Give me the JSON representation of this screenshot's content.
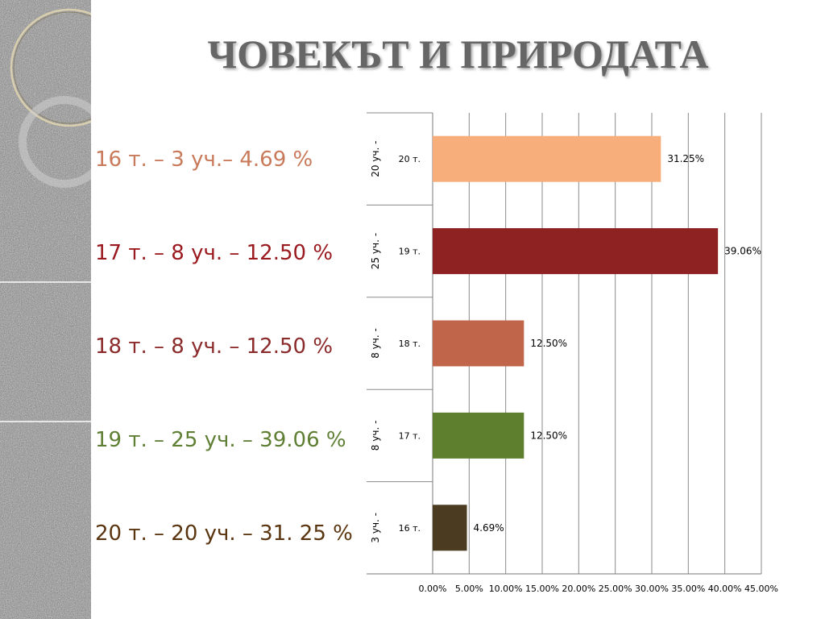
{
  "title": "ЧОВЕКЪТ И ПРИРОДАТА",
  "colors": {
    "title": "#666666",
    "sidebar": "#8f8f8f"
  },
  "stats": [
    {
      "text": "16 т. – 3 уч.– 4.69 %",
      "color": "#c87a5a"
    },
    {
      "text": "17 т. – 8 уч. – 12.50 %",
      "color": "#9a1a1f"
    },
    {
      "text": "18 т. – 8 уч. – 12.50 %",
      "color": "#8b2b2b"
    },
    {
      "text": "19 т. – 25 уч. – 39.06 %",
      "color": "#5f7f34"
    },
    {
      "text": "20 т. – 20 уч. – 31. 25 %",
      "color": "#5a3510"
    }
  ],
  "chart_data": {
    "type": "bar",
    "orientation": "horizontal",
    "categories": [
      {
        "outer": "20 уч. -",
        "inner": "20 т."
      },
      {
        "outer": "25 уч. -",
        "inner": "19 т."
      },
      {
        "outer": "8 уч. -",
        "inner": "18 т."
      },
      {
        "outer": "8 уч. -",
        "inner": "17 т."
      },
      {
        "outer": "3 уч. -",
        "inner": "16 т."
      }
    ],
    "values": [
      31.25,
      39.06,
      12.5,
      12.5,
      4.69
    ],
    "value_labels": [
      "31.25%",
      "39.06%",
      "12.50%",
      "12.50%",
      "4.69%"
    ],
    "bar_colors": [
      "#f7ae7a",
      "#8e2121",
      "#c0654a",
      "#5e7f2e",
      "#4b3b20"
    ],
    "xlim": [
      0,
      45
    ],
    "xticks": [
      "0.00%",
      "5.00%",
      "10.00%",
      "15.00%",
      "20.00%",
      "25.00%",
      "30.00%",
      "35.00%",
      "40.00%",
      "45.00%"
    ],
    "grid": true,
    "legend": "none"
  }
}
